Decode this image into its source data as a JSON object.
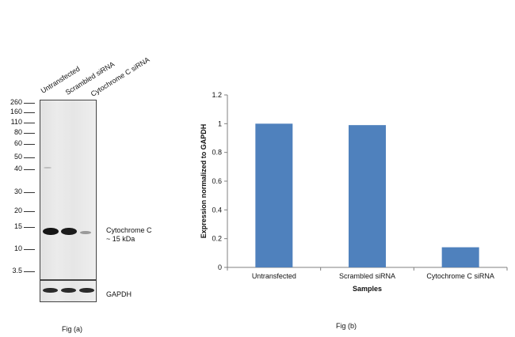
{
  "blot": {
    "lanes": [
      "Untransfected",
      "Scrambled siRNA",
      "Cytochrome C siRNA"
    ],
    "mw_markers": [
      "260",
      "160",
      "110",
      "80",
      "60",
      "50",
      "40",
      "30",
      "20",
      "15",
      "10",
      "3.5"
    ],
    "target_label": "Cytochrome C",
    "target_size": "~ 15 kDa",
    "loading_control": "GAPDH",
    "caption": "Fig (a)"
  },
  "figure_b": {
    "caption": "Fig (b)"
  },
  "colors": {
    "bar": "#4f81bd",
    "axis": "#808080"
  },
  "chart_data": {
    "type": "bar",
    "categories": [
      "Untransfected",
      "Scrambled siRNA",
      "Cytochrome C siRNA"
    ],
    "values": [
      1.0,
      0.99,
      0.14
    ],
    "title": "",
    "xlabel": "Samples",
    "ylabel": "Expression  normalized to GAPDH",
    "ylim": [
      0,
      1.2
    ],
    "yticks": [
      "0",
      "0.2",
      "0.4",
      "0.6",
      "0.8",
      "1",
      "1.2"
    ],
    "grid": false,
    "legend": "none"
  }
}
